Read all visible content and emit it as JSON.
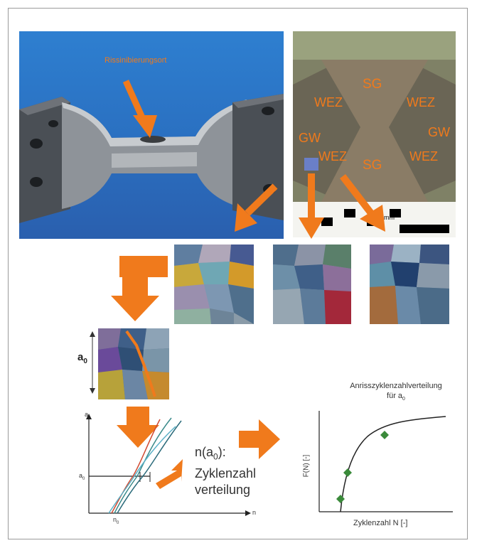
{
  "photo_label": "Rissinibierungsort",
  "section_labels": {
    "sg_top": "SG",
    "sg_bottom": "SG",
    "wez_top_left": "WEZ",
    "wez_top_right": "WEZ",
    "wez_bottom_left": "WEZ",
    "wez_bottom_right": "WEZ",
    "gw_left": "GW",
    "gw_right": "GW",
    "scale_unit": "mm"
  },
  "crack_length_symbol": "a",
  "crack_length_subscript": "0",
  "plot_left": {
    "y_axis_label": "a",
    "x_axis_label": "n",
    "a0_tick": "a",
    "a0_sub": "0",
    "n0_tick": "n",
    "n0_sub": "0"
  },
  "distribution_text": {
    "line1_prefix": "n(a",
    "line1_sub": "0",
    "line1_suffix": "):",
    "line2": "Zyklenzahl",
    "line3": "verteilung"
  },
  "plot_right": {
    "title_line1": "Anrisszyklenzahlverteilung",
    "title_line2": "für a",
    "title_sub": "0",
    "y_axis_label": "F(N) [-]",
    "x_axis_label": "Zyklenzahl N [-]"
  },
  "colors": {
    "arrow_orange": "#f07a1c",
    "weld_text": "#f07a1c",
    "marker_green": "#3a8a3a"
  }
}
